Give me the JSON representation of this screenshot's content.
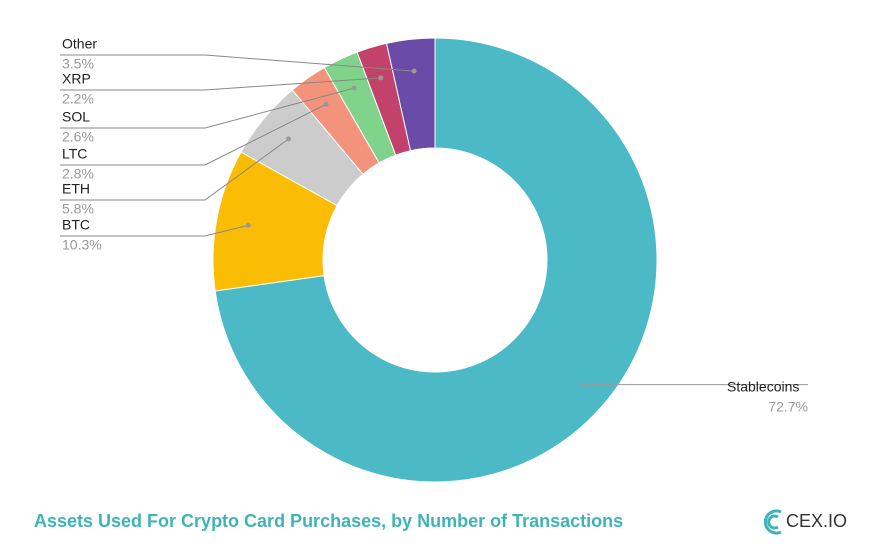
{
  "chart_data": {
    "type": "donut",
    "title": "Assets Used For Crypto Card Purchases, by Number of Transactions",
    "logo": "CEX.IO",
    "categories": [
      "Stablecoins",
      "BTC",
      "ETH",
      "LTC",
      "SOL",
      "XRP",
      "Other"
    ],
    "values": [
      72.7,
      10.3,
      5.8,
      2.8,
      2.6,
      2.2,
      3.5
    ],
    "value_labels": [
      "72.7%",
      "10.3%",
      "5.8%",
      "2.8%",
      "2.6%",
      "2.2%",
      "3.5%"
    ],
    "colors": [
      "#4bbac6",
      "#fbbc04",
      "#cccccc",
      "#f4937b",
      "#7fd38b",
      "#c2426b",
      "#6a4ba8"
    ]
  }
}
